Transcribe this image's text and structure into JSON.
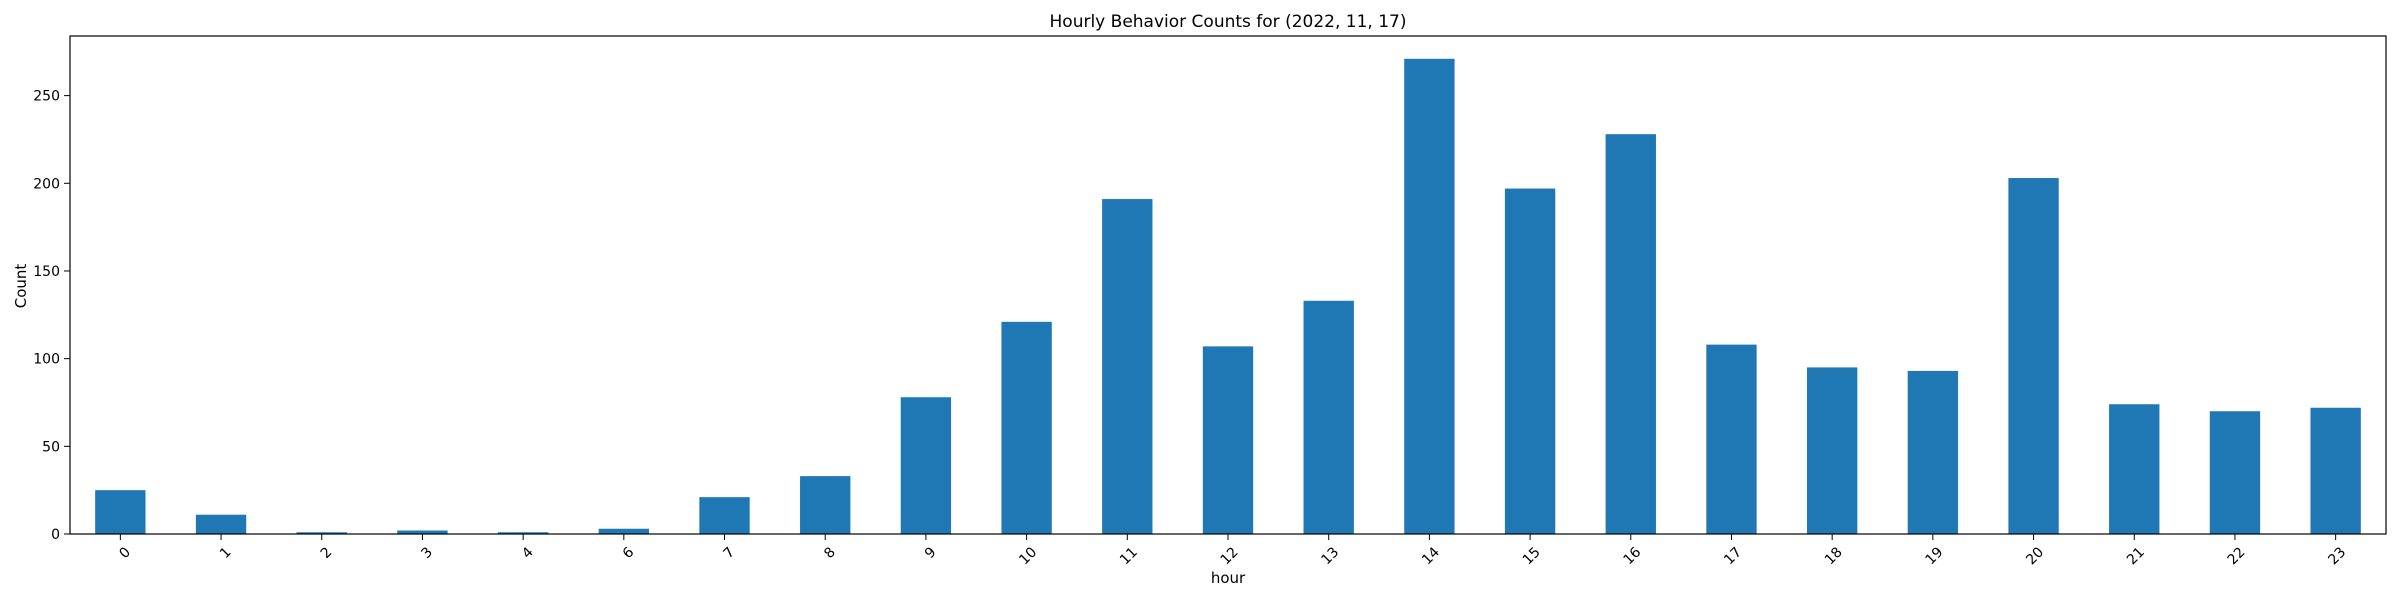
{
  "chart_data": {
    "type": "bar",
    "title": "Hourly Behavior Counts for (2022, 11, 17)",
    "xlabel": "hour",
    "ylabel": "Count",
    "categories": [
      "0",
      "1",
      "2",
      "3",
      "4",
      "6",
      "7",
      "8",
      "9",
      "10",
      "11",
      "12",
      "13",
      "14",
      "15",
      "16",
      "17",
      "18",
      "19",
      "20",
      "21",
      "22",
      "23"
    ],
    "values": [
      25,
      11,
      1,
      2,
      1,
      3,
      21,
      33,
      78,
      121,
      191,
      107,
      133,
      271,
      197,
      228,
      108,
      95,
      93,
      203,
      74,
      70,
      72
    ],
    "ylim": [
      0,
      284
    ],
    "yticks": [
      0,
      50,
      100,
      150,
      200,
      250
    ],
    "x_tick_rotation": 45,
    "grid": false,
    "legend": "none",
    "colors": {
      "bar": "#1f77b4"
    }
  }
}
